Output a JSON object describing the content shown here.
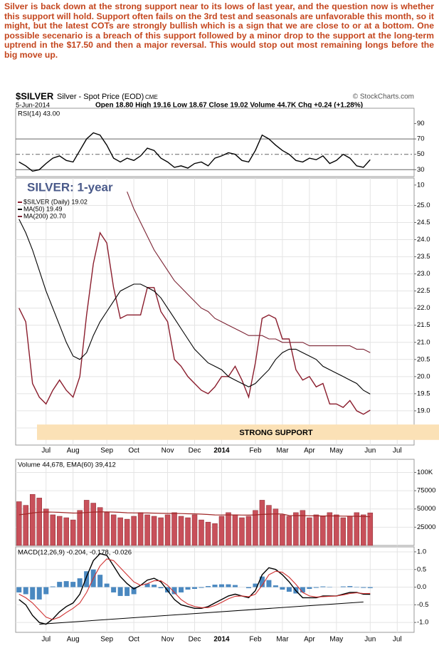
{
  "commentary": "Silver is back down at the strong support near to its lows of last year, and the question now is whether this support will hold. Support often fails on the 3rd test and seasonals are unfavorable this month, so it might, but the latest COTs are strongly bullish which is a sign that we are close to or at a bottom. One possible secenario is a breach of this support followed by a minor drop to the support at the long-term uptrend in the $17.50 and then a major reversal. This would stop out most remaining longs before the big move up.",
  "header": {
    "symbol": "$SILVER",
    "name": "Silver - Spot Price (EOD)",
    "exchange": "CME",
    "copyright": "© StockCharts.com",
    "date": "5-Jun-2014",
    "quote": "Open 18.80 High 19.16 Low 18.67 Close 19.02 Volume 44.7K Chg +0.24 (+1.28%)"
  },
  "chart_data": [
    {
      "type": "line",
      "label": "RSI(14) 43.00",
      "series": [
        {
          "color": "#000000",
          "values": [
            40,
            35,
            28,
            30,
            38,
            45,
            48,
            42,
            40,
            55,
            70,
            78,
            75,
            62,
            45,
            40,
            45,
            42,
            48,
            58,
            55,
            45,
            40,
            33,
            35,
            32,
            38,
            40,
            35,
            45,
            48,
            52,
            50,
            42,
            40,
            55,
            75,
            70,
            62,
            55,
            50,
            42,
            40,
            45,
            43,
            48,
            38,
            42,
            50,
            45,
            35,
            33,
            43,
            null,
            null,
            null,
            null,
            null,
            null
          ]
        }
      ],
      "ylim": [
        8,
        110
      ],
      "yticks": [
        90,
        70,
        50,
        30,
        10
      ],
      "levels": [
        70,
        50,
        30
      ],
      "dashed_level": 50
    },
    {
      "type": "line",
      "title": "SILVER: 1-year",
      "categories": [
        null,
        null,
        null,
        null,
        "Jul",
        null,
        null,
        null,
        "Aug",
        null,
        null,
        null,
        null,
        "Sep",
        null,
        null,
        null,
        "Oct",
        null,
        null,
        null,
        null,
        "Nov",
        null,
        null,
        null,
        "Dec",
        null,
        null,
        null,
        "2014",
        null,
        null,
        null,
        null,
        "Feb",
        null,
        null,
        null,
        "Mar",
        null,
        null,
        null,
        "Apr",
        null,
        null,
        null,
        "May",
        null,
        null,
        null,
        null,
        "Jun",
        null,
        null,
        null,
        "Jul",
        null,
        null
      ],
      "series": [
        {
          "name": "$SILVER (Daily) 19.02",
          "color": "#8a1c2c",
          "values": [
            22.0,
            21.6,
            19.8,
            19.4,
            19.2,
            19.6,
            19.9,
            19.6,
            19.4,
            20.0,
            21.8,
            23.3,
            24.2,
            23.9,
            22.6,
            21.7,
            21.8,
            21.8,
            21.8,
            22.6,
            22.6,
            21.9,
            21.6,
            20.5,
            20.3,
            20.0,
            19.8,
            19.6,
            19.5,
            19.7,
            20.0,
            20.0,
            20.3,
            19.9,
            19.4,
            20.4,
            21.7,
            21.8,
            21.7,
            21.1,
            21.1,
            20.2,
            19.9,
            20.0,
            19.7,
            19.8,
            19.2,
            19.2,
            19.1,
            19.3,
            19.0,
            18.9,
            19.02,
            null,
            null,
            null,
            null,
            null,
            null
          ]
        },
        {
          "name": "MA(50) 19.49",
          "color": "#000000",
          "values": [
            24.6,
            24.2,
            23.7,
            23.1,
            22.5,
            22.0,
            21.5,
            21.0,
            20.6,
            20.5,
            20.7,
            21.2,
            21.6,
            21.9,
            22.2,
            22.5,
            22.6,
            22.7,
            22.7,
            22.6,
            22.5,
            22.3,
            22.0,
            21.7,
            21.4,
            21.1,
            20.8,
            20.6,
            20.4,
            20.3,
            20.2,
            20.0,
            19.9,
            19.8,
            19.7,
            19.8,
            20.0,
            20.2,
            20.5,
            20.7,
            20.8,
            20.8,
            20.7,
            20.6,
            20.5,
            20.3,
            20.2,
            20.1,
            20.0,
            19.9,
            19.8,
            19.6,
            19.49,
            null,
            null,
            null,
            null,
            null,
            null
          ]
        },
        {
          "name": "MA(200) 20.70",
          "color": "#7b2232",
          "values": [
            null,
            null,
            null,
            null,
            null,
            null,
            null,
            null,
            null,
            null,
            null,
            null,
            null,
            null,
            null,
            null,
            25.4,
            24.9,
            24.5,
            24.1,
            23.7,
            23.4,
            23.1,
            22.8,
            22.6,
            22.4,
            22.2,
            22.0,
            21.9,
            21.7,
            21.6,
            21.5,
            21.4,
            21.3,
            21.2,
            21.2,
            21.2,
            21.1,
            21.1,
            21.0,
            21.0,
            21.0,
            21.0,
            20.9,
            20.9,
            20.9,
            20.9,
            20.9,
            20.9,
            20.9,
            20.8,
            20.8,
            20.7,
            null,
            null,
            null,
            null,
            null,
            null
          ]
        }
      ],
      "ylim": [
        18.0,
        25.8
      ],
      "yticks": [
        18.5,
        {
          "value": 19,
          "label": "19.0"
        },
        19.5,
        {
          "value": 20,
          "label": "20.0"
        },
        20.5,
        {
          "value": 21,
          "label": "21.0"
        },
        21.5,
        {
          "value": 22,
          "label": "22.0"
        },
        22.5,
        {
          "value": 23,
          "label": "23.0"
        },
        23.5,
        {
          "value": 24,
          "label": "24.0"
        },
        24.5,
        {
          "value": 25,
          "label": "25.0"
        }
      ],
      "grid": true,
      "annotation": {
        "text": "STRONG SUPPORT",
        "low": 18.15,
        "high": 18.6,
        "color": "#fbe1b6"
      }
    },
    {
      "type": "bar",
      "label": "Volume 44,678, EMA(60) 39,412",
      "color": "#c8505a",
      "values": [
        60000,
        55000,
        70000,
        65000,
        50000,
        42000,
        40000,
        38000,
        35000,
        48000,
        62000,
        58000,
        52000,
        45000,
        42000,
        38000,
        36000,
        40000,
        45000,
        42000,
        40000,
        38000,
        42000,
        45000,
        40000,
        38000,
        42000,
        35000,
        32000,
        30000,
        40000,
        45000,
        42000,
        38000,
        40000,
        48000,
        62000,
        55000,
        50000,
        42000,
        40000,
        45000,
        48000,
        38000,
        42000,
        40000,
        45000,
        42000,
        38000,
        40000,
        45000,
        42000,
        44678,
        null,
        null,
        null,
        null,
        null,
        null
      ],
      "ema": {
        "color": "#a02828",
        "values": [
          42000,
          43000,
          44500,
          45500,
          45800,
          45600,
          45300,
          44900,
          44400,
          44500,
          45200,
          45700,
          45900,
          45900,
          45700,
          45300,
          44800,
          44600,
          44600,
          44500,
          44300,
          44000,
          43900,
          43900,
          43700,
          43400,
          43300,
          42900,
          42400,
          41800,
          41700,
          41800,
          41800,
          41600,
          41500,
          41800,
          42500,
          42900,
          43200,
          43100,
          41000,
          40900,
          41000,
          40700,
          40600,
          40400,
          40500,
          40400,
          40200,
          40100,
          40000,
          39700,
          39412,
          null,
          null,
          null,
          null,
          null,
          null
        ]
      },
      "ylim": [
        0,
        118000
      ],
      "yticks": [
        {
          "value": 100000,
          "label": "100K"
        },
        75000,
        50000,
        25000
      ]
    },
    {
      "type": "line",
      "label": "MACD(12,26,9) -0.204, -0.178, -0.026",
      "series": [
        {
          "color": "#000000",
          "values": [
            -0.35,
            -0.5,
            -0.8,
            -1.0,
            -1.05,
            -0.9,
            -0.7,
            -0.55,
            -0.45,
            -0.2,
            0.3,
            0.75,
            0.95,
            0.9,
            0.6,
            0.3,
            0.1,
            -0.05,
            0.05,
            0.2,
            0.25,
            0.15,
            -0.1,
            -0.35,
            -0.5,
            -0.55,
            -0.6,
            -0.6,
            -0.55,
            -0.45,
            -0.35,
            -0.25,
            -0.2,
            -0.25,
            -0.3,
            -0.1,
            0.35,
            0.55,
            0.5,
            0.35,
            0.15,
            -0.1,
            -0.3,
            -0.3,
            -0.3,
            -0.25,
            -0.25,
            -0.25,
            -0.2,
            -0.15,
            -0.15,
            -0.2,
            -0.204,
            null,
            null,
            null,
            null,
            null,
            null
          ]
        },
        {
          "color": "#d03030",
          "values": [
            -0.2,
            -0.3,
            -0.45,
            -0.65,
            -0.85,
            -0.92,
            -0.85,
            -0.72,
            -0.6,
            -0.45,
            -0.15,
            0.25,
            0.6,
            0.8,
            0.75,
            0.55,
            0.35,
            0.15,
            0.05,
            0.1,
            0.18,
            0.18,
            0.05,
            -0.15,
            -0.35,
            -0.48,
            -0.55,
            -0.58,
            -0.58,
            -0.52,
            -0.43,
            -0.33,
            -0.26,
            -0.25,
            -0.27,
            -0.2,
            0.05,
            0.35,
            0.45,
            0.42,
            0.28,
            0.08,
            -0.15,
            -0.25,
            -0.28,
            -0.27,
            -0.26,
            -0.25,
            -0.22,
            -0.18,
            -0.16,
            -0.18,
            -0.178,
            null,
            null,
            null,
            null,
            null,
            null
          ]
        }
      ],
      "histogram": {
        "color": "#4a88c0",
        "values": [
          -0.15,
          -0.2,
          -0.35,
          -0.35,
          -0.2,
          0.02,
          0.15,
          0.17,
          0.15,
          0.25,
          0.45,
          0.5,
          0.35,
          0.1,
          -0.15,
          -0.25,
          -0.25,
          -0.2,
          0,
          0.1,
          0.07,
          -0.03,
          -0.15,
          -0.2,
          -0.15,
          -0.07,
          -0.05,
          -0.02,
          0.03,
          0.07,
          0.08,
          0.08,
          0.06,
          0,
          -0.03,
          0.1,
          0.3,
          0.2,
          0.05,
          -0.07,
          -0.13,
          -0.18,
          -0.15,
          -0.05,
          -0.02,
          0.02,
          0.01,
          0,
          0.02,
          0.03,
          0.01,
          -0.02,
          -0.026,
          null,
          null,
          null,
          null,
          null,
          null
        ]
      },
      "trendline": {
        "color": "#000000",
        "values": [
          -1.05,
          -0.42
        ]
      },
      "ylim": [
        -1.28,
        1.14
      ],
      "yticks": [
        {
          "value": 1,
          "label": "1.0"
        },
        0.5,
        {
          "value": 0,
          "label": "0.0"
        },
        -0.5,
        {
          "value": -1,
          "label": "-1.0"
        }
      ]
    }
  ]
}
